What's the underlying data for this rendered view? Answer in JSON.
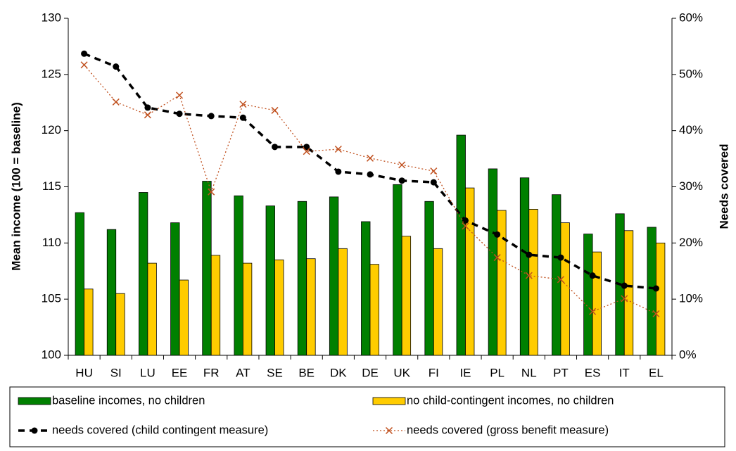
{
  "chart_data": {
    "type": "bar",
    "y_label": "Mean income (100 = baseline)",
    "y2_label": "Needs covered",
    "categories": [
      "HU",
      "SI",
      "LU",
      "EE",
      "FR",
      "AT",
      "SE",
      "BE",
      "DK",
      "DE",
      "UK",
      "FI",
      "IE",
      "PL",
      "NL",
      "PT",
      "ES",
      "IT",
      "EL"
    ],
    "ylim": [
      100,
      130
    ],
    "yticks": [
      100,
      105,
      110,
      115,
      120,
      125,
      130
    ],
    "y2lim": [
      0,
      60
    ],
    "y2ticks": [
      {
        "value": 0,
        "label": "0%"
      },
      {
        "value": 10,
        "label": "10%"
      },
      {
        "value": 20,
        "label": "20%"
      },
      {
        "value": 30,
        "label": "30%"
      },
      {
        "value": 40,
        "label": "40%"
      },
      {
        "value": 50,
        "label": "50%"
      },
      {
        "value": 60,
        "label": "60%"
      }
    ],
    "series": [
      {
        "name": "baseline incomes, no children",
        "type": "bar",
        "color": "#008000",
        "values": [
          112.7,
          111.2,
          114.5,
          111.8,
          115.5,
          114.2,
          113.3,
          113.7,
          114.1,
          111.9,
          115.2,
          113.7,
          119.6,
          116.6,
          115.8,
          114.3,
          110.8,
          112.6,
          111.4
        ]
      },
      {
        "name": "no child-contingent incomes, no children",
        "type": "bar",
        "color": "#ffcc00",
        "values": [
          105.9,
          105.5,
          108.2,
          106.7,
          108.9,
          108.2,
          108.5,
          108.6,
          109.5,
          108.1,
          110.6,
          109.5,
          114.9,
          112.9,
          113.0,
          111.8,
          109.2,
          111.1,
          110.0
        ]
      },
      {
        "name": "needs covered (child contingent measure)",
        "type": "line",
        "axis": "y2",
        "color": "#000000",
        "values": [
          53.7,
          51.4,
          44.1,
          43.0,
          42.6,
          42.3,
          37.1,
          37.1,
          32.7,
          32.2,
          31.1,
          30.8,
          24.0,
          21.5,
          17.9,
          17.4,
          14.2,
          12.4,
          11.9
        ]
      },
      {
        "name": "needs covered (gross benefit measure)",
        "type": "line",
        "axis": "y2",
        "color": "#c0501e",
        "values": [
          51.7,
          45.1,
          42.8,
          46.3,
          29.1,
          44.7,
          43.6,
          36.3,
          36.7,
          35.1,
          33.9,
          32.8,
          23.0,
          17.4,
          14.2,
          13.5,
          7.8,
          10.1,
          7.4
        ]
      }
    ]
  }
}
